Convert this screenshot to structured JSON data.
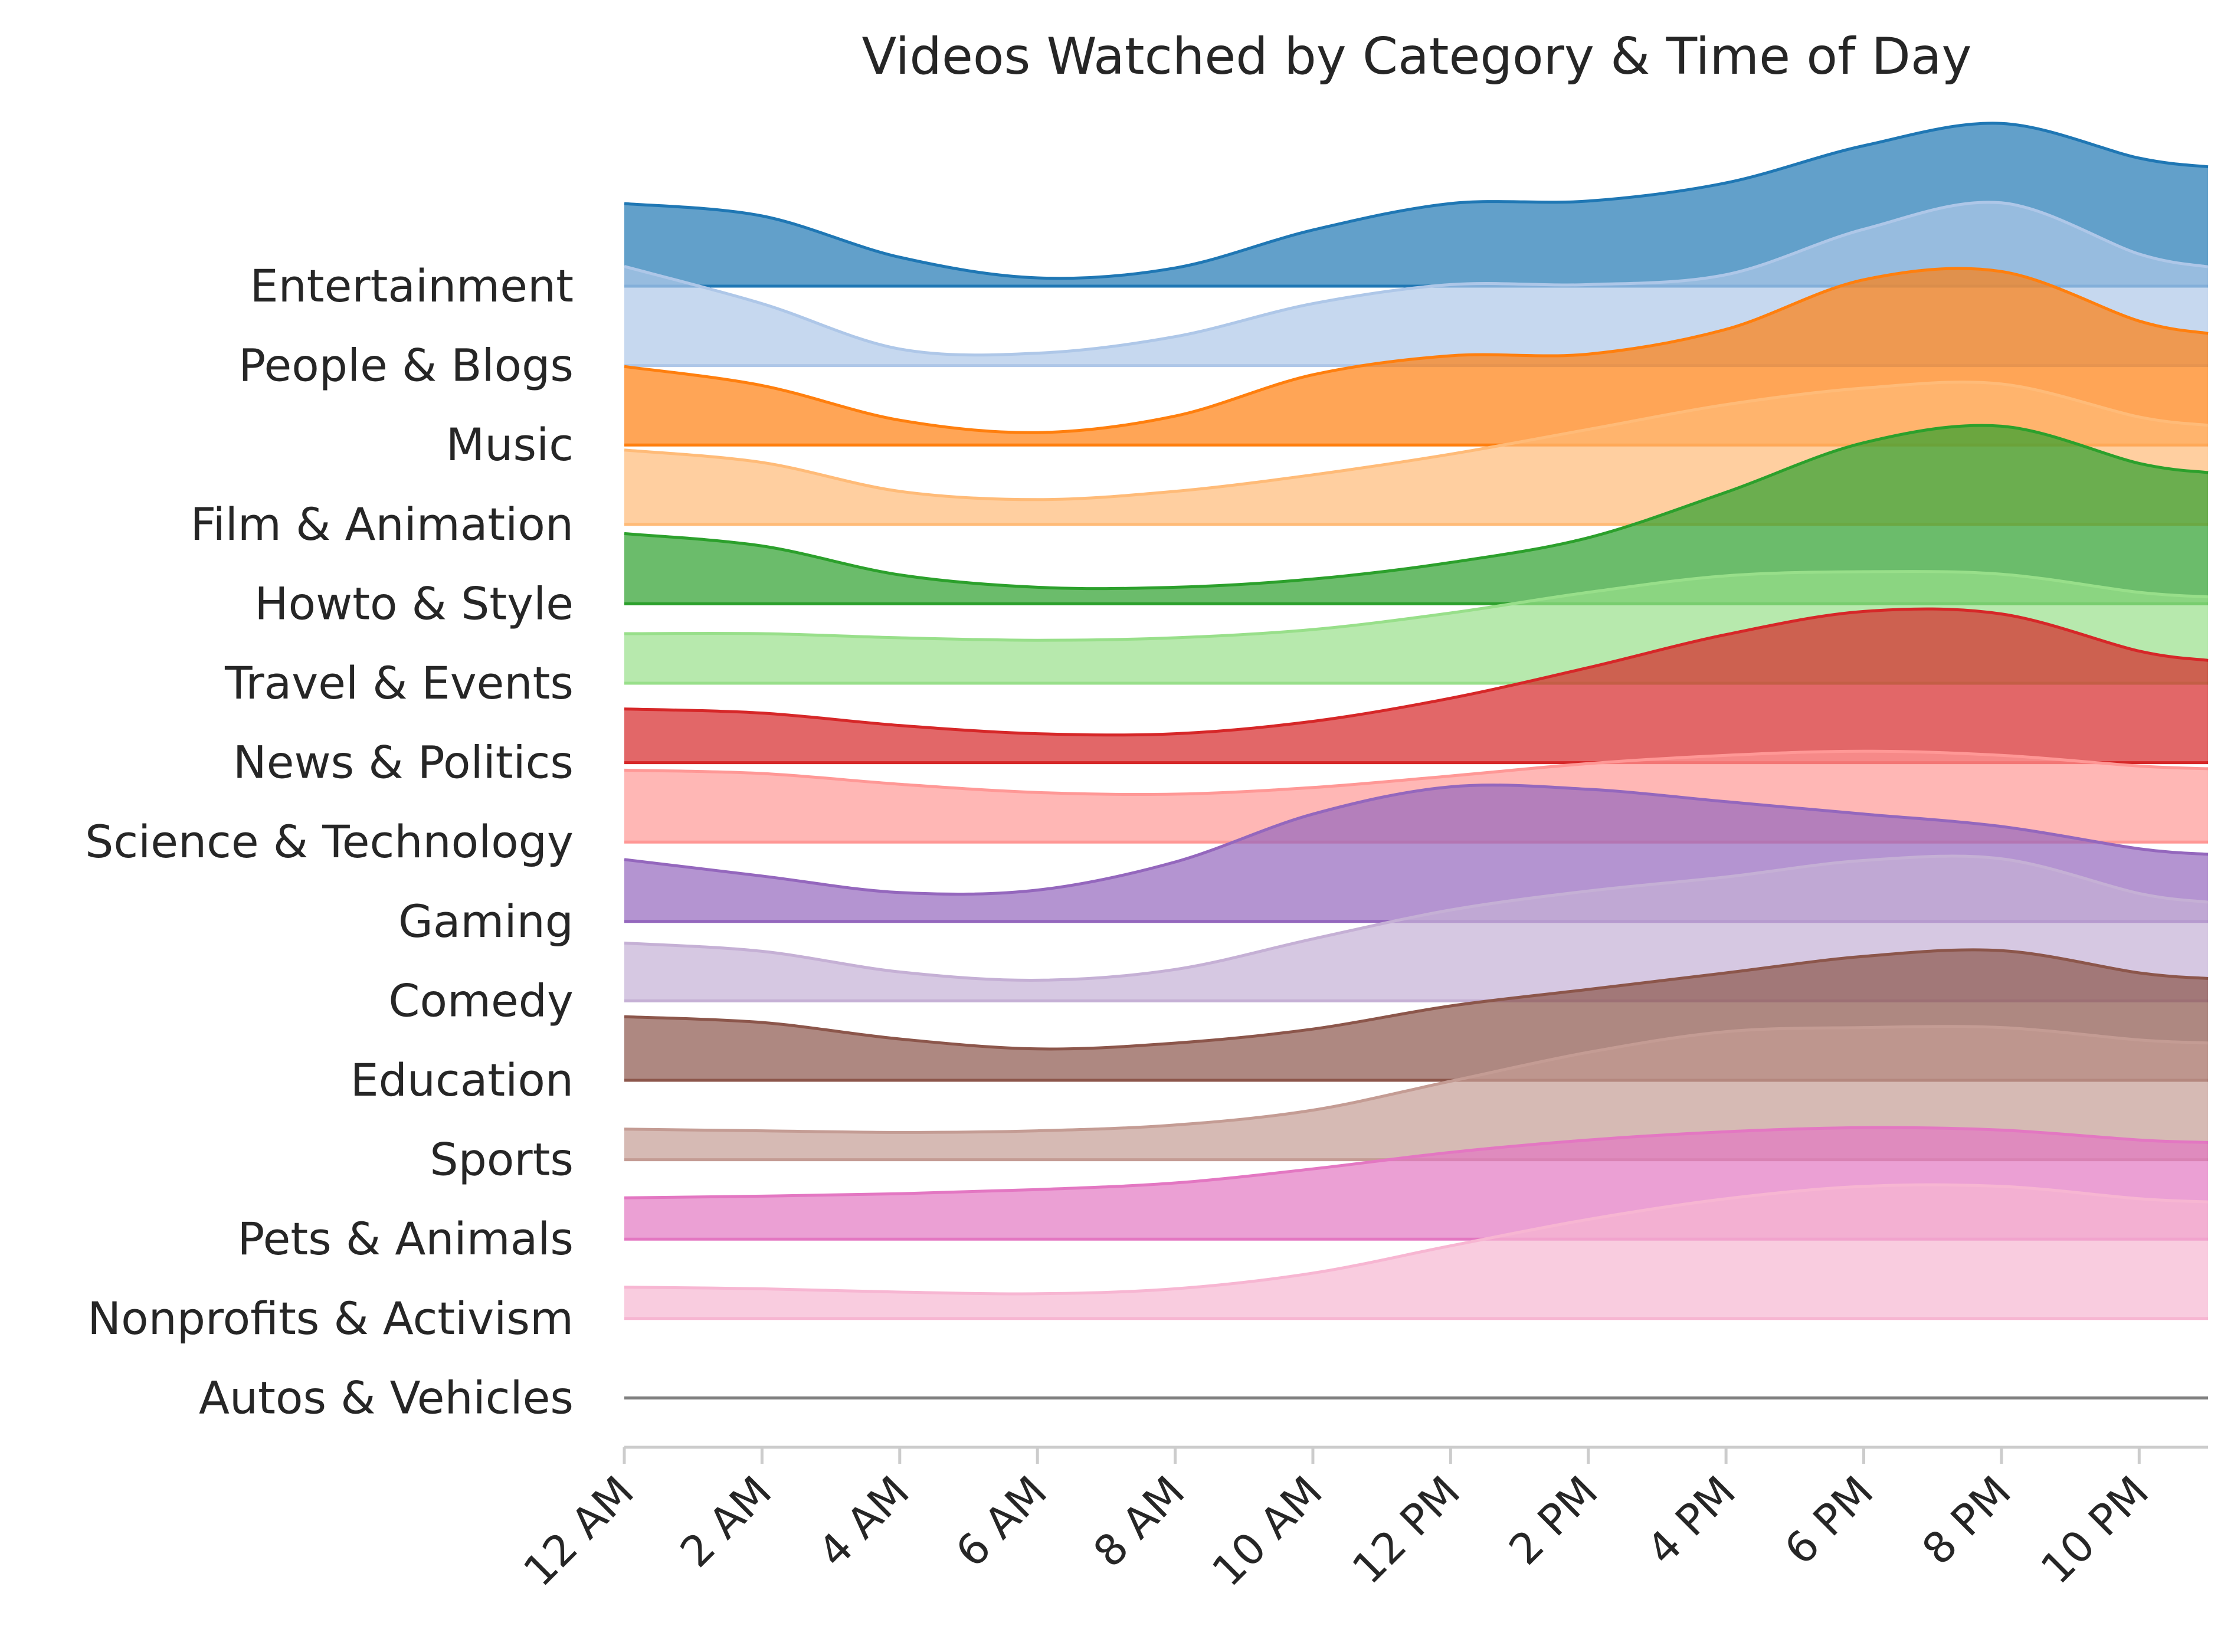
{
  "chart_data": {
    "type": "area",
    "subtype": "ridgeline",
    "title": "Videos Watched by Category & Time of Day",
    "xlabel": "",
    "ylabel": "",
    "x_hours": [
      0,
      2,
      4,
      6,
      8,
      10,
      12,
      14,
      16,
      18,
      20,
      22
    ],
    "x_tick_labels": [
      "12 AM",
      "2 AM",
      "4 AM",
      "6 AM",
      "8 AM",
      "10 AM",
      "12 PM",
      "2 PM",
      "4 PM",
      "6 PM",
      "8 PM",
      "10 PM"
    ],
    "xlim": [
      0,
      23
    ],
    "y_axis_visible": false,
    "grid": false,
    "series": [
      {
        "name": "Entertainment",
        "color": "#1f77b4",
        "values": [
          1.0,
          0.85,
          0.35,
          0.1,
          0.22,
          0.68,
          1.0,
          1.03,
          1.25,
          1.7,
          1.97,
          1.55
        ]
      },
      {
        "name": "People & Blogs",
        "color": "#aec7e8",
        "values": [
          1.2,
          0.75,
          0.2,
          0.15,
          0.35,
          0.75,
          0.98,
          0.98,
          1.1,
          1.65,
          1.97,
          1.35
        ]
      },
      {
        "name": "Music",
        "color": "#ff7f0e",
        "values": [
          0.95,
          0.72,
          0.3,
          0.15,
          0.35,
          0.85,
          1.08,
          1.1,
          1.4,
          2.0,
          2.1,
          1.5
        ]
      },
      {
        "name": "Film & Animation",
        "color": "#ffbb78",
        "values": [
          0.9,
          0.75,
          0.4,
          0.3,
          0.4,
          0.6,
          0.85,
          1.15,
          1.45,
          1.65,
          1.7,
          1.3
        ]
      },
      {
        "name": "Howto & Style",
        "color": "#2ca02c",
        "values": [
          0.85,
          0.7,
          0.35,
          0.2,
          0.2,
          0.3,
          0.5,
          0.8,
          1.35,
          1.95,
          2.15,
          1.7
        ]
      },
      {
        "name": "Travel & Events",
        "color": "#98df8a",
        "values": [
          0.6,
          0.6,
          0.55,
          0.52,
          0.55,
          0.65,
          0.85,
          1.1,
          1.3,
          1.35,
          1.32,
          1.1
        ]
      },
      {
        "name": "News & Politics",
        "color": "#d62728",
        "values": [
          0.65,
          0.6,
          0.45,
          0.35,
          0.35,
          0.5,
          0.78,
          1.15,
          1.55,
          1.83,
          1.8,
          1.35
        ]
      },
      {
        "name": "Science & Technology",
        "color": "#ff9896",
        "values": [
          0.87,
          0.83,
          0.7,
          0.6,
          0.58,
          0.66,
          0.8,
          0.95,
          1.05,
          1.1,
          1.05,
          0.92
        ]
      },
      {
        "name": "Gaming",
        "color": "#9467bd",
        "values": [
          0.75,
          0.55,
          0.35,
          0.38,
          0.72,
          1.3,
          1.63,
          1.6,
          1.45,
          1.3,
          1.15,
          0.88
        ]
      },
      {
        "name": "Comedy",
        "color": "#c5b0d5",
        "values": [
          0.7,
          0.6,
          0.35,
          0.25,
          0.38,
          0.75,
          1.1,
          1.33,
          1.5,
          1.7,
          1.72,
          1.3
        ]
      },
      {
        "name": "Education",
        "color": "#8c564b",
        "values": [
          0.77,
          0.7,
          0.5,
          0.38,
          0.45,
          0.62,
          0.9,
          1.1,
          1.3,
          1.5,
          1.57,
          1.3
        ]
      },
      {
        "name": "Sports",
        "color": "#c49c94",
        "values": [
          0.37,
          0.35,
          0.33,
          0.35,
          0.42,
          0.6,
          0.95,
          1.3,
          1.55,
          1.6,
          1.6,
          1.45
        ]
      },
      {
        "name": "Pets & Animals",
        "color": "#e377c2",
        "values": [
          0.5,
          0.52,
          0.55,
          0.6,
          0.68,
          0.85,
          1.05,
          1.2,
          1.3,
          1.35,
          1.32,
          1.2
        ]
      },
      {
        "name": "Nonprofits & Activism",
        "color": "#f7b6d2",
        "values": [
          0.38,
          0.36,
          0.32,
          0.3,
          0.36,
          0.55,
          0.88,
          1.2,
          1.45,
          1.6,
          1.6,
          1.45
        ]
      },
      {
        "name": "Autos & Vehicles",
        "color": "#7f7f7f",
        "values": [
          0,
          0,
          0,
          0,
          0,
          0,
          0,
          0,
          0,
          0,
          0,
          0
        ]
      }
    ]
  }
}
